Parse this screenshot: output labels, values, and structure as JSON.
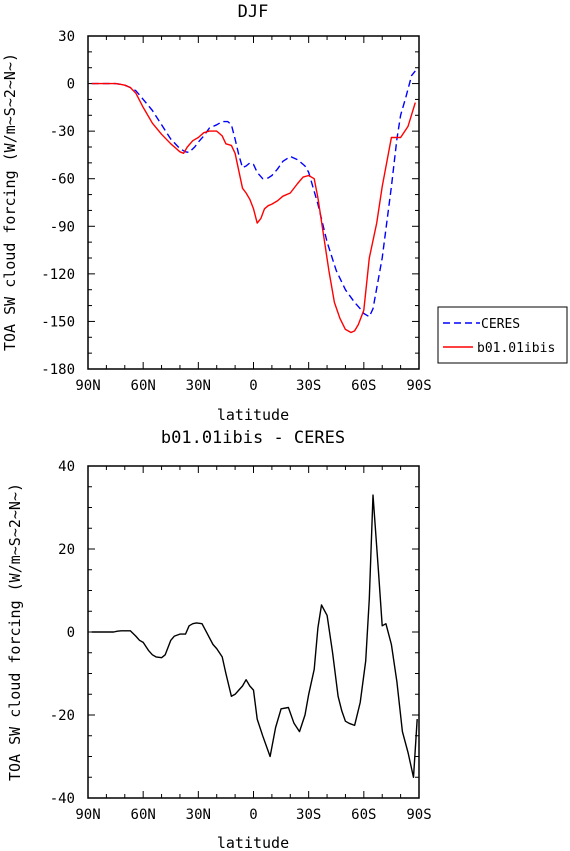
{
  "chart_data": [
    {
      "type": "line",
      "title": "DJF",
      "xlabel": "latitude",
      "ylabel": "TOA SW cloud forcing (W/m~S~2~N~)",
      "xlim": [
        90,
        -90
      ],
      "ylim": [
        -180,
        30
      ],
      "x_ticks": [
        90,
        60,
        30,
        0,
        -30,
        -60,
        -90
      ],
      "x_tick_labels": [
        "90N",
        "60N",
        "30N",
        "0",
        "30S",
        "60S",
        "90S"
      ],
      "y_ticks": [
        30,
        0,
        -30,
        -60,
        -90,
        -120,
        -150,
        -180
      ],
      "y_tick_labels": [
        "30",
        "0",
        "-30",
        "-60",
        "-90",
        "-120",
        "-150",
        "-180"
      ],
      "legend_position": "outside-right",
      "series": [
        {
          "name": "CERES",
          "color": "#0000ff",
          "dash": "dashed",
          "x": [
            88,
            85,
            80,
            75,
            72,
            70,
            67,
            64,
            60,
            55,
            50,
            45,
            40,
            37,
            35,
            32,
            30,
            27,
            24,
            20,
            17,
            14,
            12,
            10,
            8,
            6,
            4,
            2,
            0,
            -2,
            -5,
            -8,
            -10,
            -13,
            -16,
            -20,
            -24,
            -28,
            -30,
            -35,
            -40,
            -45,
            -50,
            -55,
            -58,
            -60,
            -63,
            -65,
            -70,
            -75,
            -78,
            -80,
            -83,
            -86,
            -88
          ],
          "y": [
            0,
            0,
            0,
            0,
            -0.5,
            -1,
            -2.5,
            -4.5,
            -10,
            -17,
            -26,
            -35,
            -41,
            -43,
            -43.5,
            -40,
            -37,
            -33,
            -28,
            -26,
            -24,
            -24,
            -26,
            -35,
            -45,
            -53,
            -52,
            -50,
            -51,
            -56,
            -60,
            -59.5,
            -58,
            -54,
            -49,
            -46,
            -48,
            -52,
            -56,
            -76,
            -100,
            -118,
            -130,
            -138,
            -142,
            -145,
            -147,
            -142,
            -110,
            -65,
            -35,
            -20,
            -8,
            5,
            8
          ]
        },
        {
          "name": "b01.01ibis",
          "color": "#ff0000",
          "dash": "solid",
          "x": [
            88,
            85,
            80,
            75,
            72,
            70,
            67,
            64,
            60,
            55,
            50,
            45,
            42,
            40,
            38,
            36,
            33,
            30,
            27,
            24,
            20,
            17,
            15,
            12,
            10,
            8,
            6,
            4,
            2,
            0,
            -2,
            -4,
            -6,
            -8,
            -10,
            -13,
            -16,
            -20,
            -24,
            -27,
            -30,
            -33,
            -35,
            -38,
            -41,
            -44,
            -47,
            -50,
            -53,
            -55,
            -57,
            -60,
            -63,
            -67,
            -70,
            -75,
            -80,
            -84,
            -88
          ],
          "y": [
            0,
            0,
            0,
            0,
            -0.5,
            -1,
            -2.5,
            -6,
            -15,
            -25,
            -32,
            -38,
            -41,
            -43,
            -44,
            -40,
            -36,
            -34,
            -31,
            -30,
            -30,
            -33,
            -38,
            -39,
            -44,
            -55,
            -66,
            -69,
            -73,
            -79,
            -88,
            -85,
            -79,
            -77,
            -76,
            -74,
            -71,
            -69,
            -63,
            -59,
            -58,
            -60,
            -72,
            -95,
            -118,
            -138,
            -148,
            -155,
            -157,
            -156,
            -152,
            -143,
            -110,
            -88,
            -65,
            -34,
            -34,
            -27,
            -12
          ]
        }
      ]
    },
    {
      "type": "line",
      "title": "b01.01ibis - CERES",
      "xlabel": "latitude",
      "ylabel": "TOA SW cloud forcing (W/m~S~2~N~)",
      "xlim": [
        90,
        -90
      ],
      "ylim": [
        -40,
        40
      ],
      "x_ticks": [
        90,
        60,
        30,
        0,
        -30,
        -60,
        -90
      ],
      "x_tick_labels": [
        "90N",
        "60N",
        "30N",
        "0",
        "30S",
        "60S",
        "90S"
      ],
      "y_ticks": [
        40,
        20,
        0,
        -20,
        -40
      ],
      "y_tick_labels": [
        "40",
        "20",
        "0",
        "-20",
        "-40"
      ],
      "series": [
        {
          "color": "#000000",
          "dash": "solid",
          "x": [
            88,
            85,
            80,
            76,
            74,
            72,
            70,
            67,
            64,
            62,
            60,
            57,
            55,
            53,
            50,
            48,
            45,
            43,
            40,
            37,
            35,
            33,
            31,
            28,
            25,
            22,
            20,
            17,
            15,
            12,
            10,
            8,
            6,
            4,
            2,
            0,
            -2,
            -5,
            -9,
            -12,
            -15,
            -19,
            -22,
            -25,
            -28,
            -30,
            -33,
            -35,
            -37,
            -40,
            -43,
            -46,
            -48,
            -50,
            -52,
            -55,
            -58,
            -61,
            -63,
            -65,
            -68,
            -70,
            -72,
            -75,
            -78,
            -81,
            -84,
            -87,
            -89
          ],
          "y": [
            0,
            0,
            0,
            0,
            0.2,
            0.3,
            0.3,
            0.3,
            -1,
            -2,
            -2.5,
            -4.5,
            -5.5,
            -6,
            -6.2,
            -5.5,
            -2,
            -1,
            -0.5,
            -0.5,
            1.5,
            2,
            2.2,
            2,
            -0.5,
            -3,
            -4,
            -6,
            -10,
            -15.5,
            -15,
            -14,
            -13,
            -11.5,
            -13,
            -14,
            -21,
            -25,
            -30,
            -23,
            -18.5,
            -18.2,
            -22,
            -24,
            -20,
            -15,
            -9,
            1,
            6.5,
            4,
            -5,
            -15.5,
            -19,
            -21.5,
            -22,
            -22.5,
            -17,
            -7,
            8,
            33,
            14.5,
            1.5,
            2,
            -3,
            -12,
            -24,
            -29,
            -35,
            -21
          ]
        }
      ]
    }
  ]
}
